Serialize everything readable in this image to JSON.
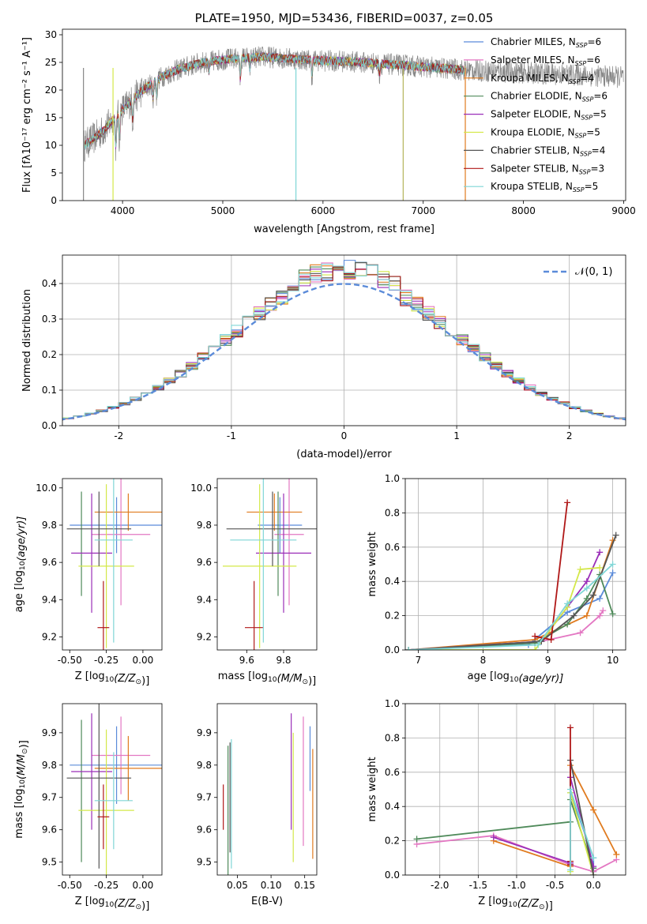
{
  "colors": {
    "Chabrier MILES": "#5b8bd9",
    "Salpeter MILES": "#e377c2",
    "Kroupa MILES": "#e07b1f",
    "Chabrier ELODIE": "#4f8a5a",
    "Salpeter ELODIE": "#9a2eb8",
    "Kroupa ELODIE": "#d4e84a",
    "Chabrier STELIB": "#555555",
    "Salpeter STELIB": "#b01818",
    "Kroupa STELIB": "#7fd6d6"
  },
  "chart_data": [
    {
      "id": "spectrum",
      "type": "line",
      "title": "PLATE=1950, MJD=53436, FIBERID=0037, z=0.05",
      "xlabel": "wavelength [Angstrom, rest frame]",
      "ylabel": "Flux [fλ10⁻¹⁷ erg cm⁻² s⁻¹ A⁻¹]",
      "xlim": [
        3400,
        9020
      ],
      "ylim": [
        0,
        31
      ],
      "xticks": [
        4000,
        5000,
        6000,
        7000,
        8000,
        9000
      ],
      "yticks": [
        0,
        5,
        10,
        15,
        20,
        25,
        30
      ],
      "continuum": {
        "x": [
          3620,
          3800,
          4000,
          4200,
          4400,
          4600,
          4800,
          5000,
          5200,
          5400,
          5600,
          5800,
          6000,
          6200,
          6400,
          6600,
          6800,
          7000,
          7200,
          7420
        ],
        "y": [
          10,
          12.5,
          16.5,
          20,
          22.5,
          24,
          25,
          25.5,
          25.8,
          26,
          25.8,
          25.5,
          25.3,
          25.2,
          25,
          24.7,
          24.5,
          24.2,
          23.9,
          23.6
        ]
      },
      "observed_range": [
        3610,
        9000
      ],
      "absorption_lines": [
        {
          "x": 3934,
          "depth": 6
        },
        {
          "x": 3969,
          "depth": 5
        },
        {
          "x": 4102,
          "depth": 4
        },
        {
          "x": 4304,
          "depth": 3
        },
        {
          "x": 4340,
          "depth": 3
        },
        {
          "x": 4861,
          "depth": 2
        },
        {
          "x": 5175,
          "depth": 4
        },
        {
          "x": 5270,
          "depth": 2
        },
        {
          "x": 5890,
          "depth": 3
        },
        {
          "x": 6563,
          "depth": 2
        }
      ],
      "legend": [
        {
          "label": "Chabrier MILES, N",
          "n": "6"
        },
        {
          "label": "Salpeter MILES, N",
          "n": "6"
        },
        {
          "label": "Kroupa MILES, N",
          "n": "4"
        },
        {
          "label": "Chabrier ELODIE, N",
          "n": "6"
        },
        {
          "label": "Salpeter ELODIE, N",
          "n": "5"
        },
        {
          "label": "Kroupa ELODIE, N",
          "n": "5"
        },
        {
          "label": "Chabrier STELIB, N",
          "n": "4"
        },
        {
          "label": "Salpeter STELIB, N",
          "n": "3"
        },
        {
          "label": "Kroupa STELIB, N",
          "n": "5"
        }
      ],
      "legend_sub": "SSP",
      "legend_eq": "=",
      "legend_placement": "upper-right"
    },
    {
      "id": "residuals",
      "type": "histogram",
      "xlabel": "(data-model)/error",
      "ylabel": "Normed distribution",
      "xlim": [
        -2.5,
        2.5
      ],
      "ylim": [
        0,
        0.48
      ],
      "xticks": [
        -2,
        -1,
        0,
        1,
        2
      ],
      "yticks": [
        0.0,
        0.1,
        0.2,
        0.3,
        0.4
      ],
      "grid": true,
      "bin_width": 0.1,
      "legend": "𝒩(0, 1)",
      "reference_curve": "normal(0,1)"
    },
    {
      "id": "age_vs_Z",
      "type": "errorbar",
      "xlabel": "Z [log10(Z/Z⊙)]",
      "ylabel": "age  [log10(age/yr)]",
      "xlim": [
        -0.55,
        0.13
      ],
      "ylim": [
        9.13,
        10.05
      ],
      "xticks": [
        -0.5,
        -0.25,
        0.0
      ],
      "yticks": [
        9.2,
        9.4,
        9.6,
        9.8,
        10.0
      ],
      "points": [
        {
          "model": "Chabrier MILES",
          "x": -0.18,
          "xerr": 0.32,
          "y": 9.8,
          "yerr": 0.15
        },
        {
          "model": "Salpeter MILES",
          "x": -0.15,
          "xerr": 0.2,
          "y": 9.75,
          "yerr": 0.38
        },
        {
          "model": "Kroupa MILES",
          "x": -0.1,
          "xerr": 0.23,
          "y": 9.87,
          "yerr": 0.1
        },
        {
          "model": "Chabrier ELODIE",
          "x": -0.42,
          "xerr": 0.0,
          "y": 9.7,
          "yerr": 0.28
        },
        {
          "model": "Salpeter ELODIE",
          "x": -0.35,
          "xerr": 0.14,
          "y": 9.65,
          "yerr": 0.32
        },
        {
          "model": "Kroupa ELODIE",
          "x": -0.25,
          "xerr": 0.19,
          "y": 9.58,
          "yerr": 0.44
        },
        {
          "model": "Chabrier STELIB",
          "x": -0.3,
          "xerr": 0.22,
          "y": 9.78,
          "yerr": 0.2
        },
        {
          "model": "Salpeter STELIB",
          "x": -0.27,
          "xerr": 0.04,
          "y": 9.25,
          "yerr": 0.25
        },
        {
          "model": "Kroupa STELIB",
          "x": -0.2,
          "xerr": 0.13,
          "y": 9.72,
          "yerr": 0.55
        }
      ]
    },
    {
      "id": "age_vs_mass",
      "type": "errorbar",
      "xlabel": "mass [log10(M/M⊙)]",
      "xlim": [
        9.44,
        9.98
      ],
      "ylim": [
        9.13,
        10.05
      ],
      "xticks": [
        9.6,
        9.8
      ],
      "yticks": [
        9.2,
        9.4,
        9.6,
        9.8,
        10.0
      ],
      "points": [
        {
          "model": "Chabrier MILES",
          "x": 9.78,
          "xerr": 0.12,
          "y": 9.8,
          "yerr": 0.15
        },
        {
          "model": "Salpeter MILES",
          "x": 9.83,
          "xerr": 0.08,
          "y": 9.75,
          "yerr": 0.38
        },
        {
          "model": "Kroupa MILES",
          "x": 9.75,
          "xerr": 0.15,
          "y": 9.87,
          "yerr": 0.1
        },
        {
          "model": "Chabrier ELODIE",
          "x": 9.77,
          "xerr": 0.0,
          "y": 9.7,
          "yerr": 0.28
        },
        {
          "model": "Salpeter ELODIE",
          "x": 9.8,
          "xerr": 0.15,
          "y": 9.65,
          "yerr": 0.32
        },
        {
          "model": "Kroupa ELODIE",
          "x": 9.67,
          "xerr": 0.2,
          "y": 9.58,
          "yerr": 0.44
        },
        {
          "model": "Chabrier STELIB",
          "x": 9.74,
          "xerr": 0.25,
          "y": 9.78,
          "yerr": 0.2
        },
        {
          "model": "Salpeter STELIB",
          "x": 9.64,
          "xerr": 0.05,
          "y": 9.25,
          "yerr": 0.25
        },
        {
          "model": "Kroupa STELIB",
          "x": 9.69,
          "xerr": 0.18,
          "y": 9.72,
          "yerr": 0.55
        }
      ]
    },
    {
      "id": "weight_vs_age",
      "type": "line",
      "xlabel": "age  [log10(age/yr)]",
      "ylabel": "mass weight",
      "xlim": [
        6.8,
        10.2
      ],
      "ylim": [
        0,
        1
      ],
      "xticks": [
        7,
        8,
        9,
        10
      ],
      "yticks": [
        0.0,
        0.2,
        0.4,
        0.6,
        0.8,
        1.0
      ],
      "grid": true,
      "series": [
        {
          "model": "Chabrier MILES",
          "x": [
            6.85,
            8.7,
            9.3,
            9.8,
            10.0
          ],
          "y": [
            0.0,
            0.03,
            0.22,
            0.3,
            0.45
          ]
        },
        {
          "model": "Salpeter MILES",
          "x": [
            6.85,
            8.9,
            9.5,
            9.8,
            9.85
          ],
          "y": [
            0.0,
            0.05,
            0.1,
            0.2,
            0.23
          ]
        },
        {
          "model": "Kroupa MILES",
          "x": [
            6.85,
            8.8,
            9.6,
            10.0
          ],
          "y": [
            0.0,
            0.06,
            0.2,
            0.64
          ]
        },
        {
          "model": "Chabrier ELODIE",
          "x": [
            6.85,
            8.8,
            9.3,
            9.6,
            9.8,
            10.0
          ],
          "y": [
            0.0,
            0.04,
            0.15,
            0.3,
            0.44,
            0.21
          ]
        },
        {
          "model": "Salpeter ELODIE",
          "x": [
            6.85,
            8.9,
            9.3,
            9.6,
            9.8
          ],
          "y": [
            0.0,
            0.05,
            0.25,
            0.4,
            0.57
          ]
        },
        {
          "model": "Kroupa ELODIE",
          "x": [
            6.85,
            8.8,
            9.3,
            9.5,
            9.8
          ],
          "y": [
            0.0,
            0.0,
            0.25,
            0.47,
            0.48
          ]
        },
        {
          "model": "Chabrier STELIB",
          "x": [
            6.85,
            8.9,
            9.4,
            9.7,
            10.05
          ],
          "y": [
            0.0,
            0.05,
            0.2,
            0.32,
            0.67
          ]
        },
        {
          "model": "Salpeter STELIB",
          "x": [
            8.8,
            9.05,
            9.3
          ],
          "y": [
            0.08,
            0.06,
            0.86
          ]
        },
        {
          "model": "Kroupa STELIB",
          "x": [
            6.85,
            8.85,
            9.3,
            9.6,
            10.0
          ],
          "y": [
            0.0,
            0.03,
            0.27,
            0.36,
            0.5
          ]
        }
      ]
    },
    {
      "id": "mass_vs_Z",
      "type": "errorbar",
      "xlabel": "Z [log10(Z/Z⊙)]",
      "ylabel": "mass [log10(M/M⊙)]",
      "xlim": [
        -0.55,
        0.13
      ],
      "ylim": [
        9.46,
        9.99
      ],
      "xticks": [
        -0.5,
        -0.25,
        0.0
      ],
      "yticks": [
        9.5,
        9.6,
        9.7,
        9.8,
        9.9
      ],
      "points": [
        {
          "model": "Chabrier MILES",
          "x": -0.18,
          "xerr": 0.32,
          "y": 9.8,
          "yerr": 0.12
        },
        {
          "model": "Salpeter MILES",
          "x": -0.15,
          "xerr": 0.2,
          "y": 9.83,
          "yerr": 0.12
        },
        {
          "model": "Kroupa MILES",
          "x": -0.1,
          "xerr": 0.23,
          "y": 9.79,
          "yerr": 0.1
        },
        {
          "model": "Chabrier ELODIE",
          "x": -0.42,
          "xerr": 0.0,
          "y": 9.72,
          "yerr": 0.22
        },
        {
          "model": "Salpeter ELODIE",
          "x": -0.35,
          "xerr": 0.14,
          "y": 9.78,
          "yerr": 0.18
        },
        {
          "model": "Kroupa ELODIE",
          "x": -0.25,
          "xerr": 0.19,
          "y": 9.66,
          "yerr": 0.25
        },
        {
          "model": "Chabrier STELIB",
          "x": -0.3,
          "xerr": 0.22,
          "y": 9.76,
          "yerr": 0.28
        },
        {
          "model": "Salpeter STELIB",
          "x": -0.27,
          "xerr": 0.04,
          "y": 9.64,
          "yerr": 0.1
        },
        {
          "model": "Kroupa STELIB",
          "x": -0.2,
          "xerr": 0.13,
          "y": 9.69,
          "yerr": 0.15
        }
      ]
    },
    {
      "id": "mass_vs_EBV",
      "type": "errorbar",
      "xlabel": "E(B-V)",
      "xlim": [
        0.02,
        0.168
      ],
      "ylim": [
        9.46,
        9.99
      ],
      "xticks": [
        0.05,
        0.1,
        0.15
      ],
      "yticks": [
        9.5,
        9.6,
        9.7,
        9.8,
        9.9
      ],
      "points": [
        {
          "model": "Chabrier MILES",
          "x": 0.158,
          "y": 9.82,
          "yerr": 0.1
        },
        {
          "model": "Salpeter MILES",
          "x": 0.148,
          "y": 9.75,
          "yerr": 0.2
        },
        {
          "model": "Kroupa MILES",
          "x": 0.162,
          "y": 9.68,
          "yerr": 0.17
        },
        {
          "model": "Chabrier ELODIE",
          "x": 0.036,
          "y": 9.66,
          "yerr": 0.2
        },
        {
          "model": "Salpeter ELODIE",
          "x": 0.13,
          "y": 9.78,
          "yerr": 0.18
        },
        {
          "model": "Kroupa ELODIE",
          "x": 0.133,
          "y": 9.7,
          "yerr": 0.2
        },
        {
          "model": "Chabrier STELIB",
          "x": 0.039,
          "y": 9.7,
          "yerr": 0.17
        },
        {
          "model": "Salpeter STELIB",
          "x": 0.029,
          "y": 9.67,
          "yerr": 0.07
        },
        {
          "model": "Kroupa STELIB",
          "x": 0.041,
          "y": 9.68,
          "yerr": 0.2
        }
      ]
    },
    {
      "id": "weight_vs_Z",
      "type": "line",
      "xlabel": "Z [log10(Z/Z⊙)]",
      "ylabel": "mass weight",
      "xlim": [
        -2.45,
        0.42
      ],
      "ylim": [
        0,
        1
      ],
      "xticks": [
        -2.0,
        -1.5,
        -1.0,
        -0.5,
        0.0
      ],
      "yticks": [
        0.0,
        0.2,
        0.4,
        0.6,
        0.8,
        1.0
      ],
      "grid": true,
      "series": [
        {
          "model": "Chabrier MILES",
          "x": [
            -0.3,
            -0.3,
            0.0,
            0.0
          ],
          "y": [
            0.07,
            0.48,
            0.1,
            0.02
          ]
        },
        {
          "model": "Salpeter MILES",
          "x": [
            -2.3,
            -1.3,
            -0.3,
            0.0,
            0.3
          ],
          "y": [
            0.18,
            0.23,
            0.06,
            0.02,
            0.09
          ]
        },
        {
          "model": "Kroupa MILES",
          "x": [
            -1.3,
            -0.3,
            -0.3,
            0.0,
            0.3
          ],
          "y": [
            0.2,
            0.05,
            0.64,
            0.38,
            0.12
          ]
        },
        {
          "model": "Chabrier ELODIE",
          "x": [
            -2.3,
            -0.3,
            -0.3,
            0.0
          ],
          "y": [
            0.21,
            0.31,
            0.44,
            0.04
          ]
        },
        {
          "model": "Salpeter ELODIE",
          "x": [
            -1.3,
            -0.3,
            -0.3,
            0.0
          ],
          "y": [
            0.22,
            0.07,
            0.57,
            0.05
          ]
        },
        {
          "model": "Kroupa ELODIE",
          "x": [
            -0.3,
            -0.3,
            0.0
          ],
          "y": [
            0.02,
            0.48,
            0.0
          ]
        },
        {
          "model": "Chabrier STELIB",
          "x": [
            -0.3,
            -0.3,
            0.0
          ],
          "y": [
            0.06,
            0.67,
            0.0
          ]
        },
        {
          "model": "Salpeter STELIB",
          "x": [
            -0.3,
            -0.3,
            -0.3
          ],
          "y": [
            0.08,
            0.06,
            0.86
          ]
        },
        {
          "model": "Kroupa STELIB",
          "x": [
            -0.3,
            -0.3,
            0.0
          ],
          "y": [
            0.03,
            0.5,
            0.1
          ]
        }
      ]
    }
  ]
}
